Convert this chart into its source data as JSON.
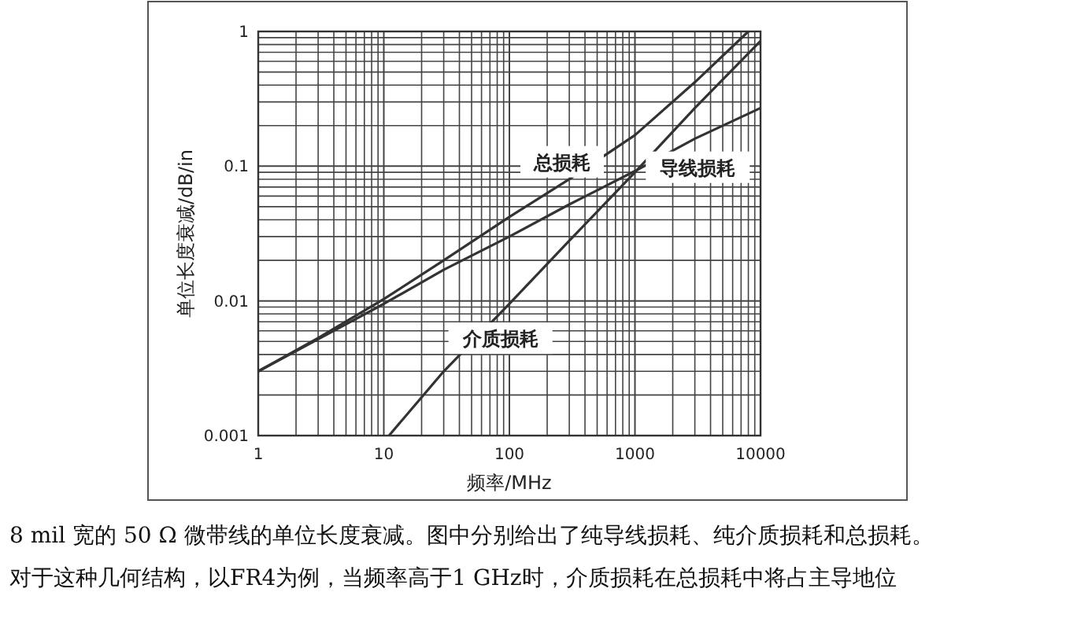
{
  "chart_data": {
    "type": "line",
    "xlabel": "频率/MHz",
    "ylabel": "单位长度衰减/dB/in",
    "log": "xy",
    "grid": true,
    "xlim": [
      1,
      10000
    ],
    "ylim": [
      0.001,
      1
    ],
    "xticks": [
      1,
      10,
      100,
      1000,
      10000
    ],
    "yticks": [
      0.001,
      0.01,
      0.1,
      1
    ],
    "series": [
      {
        "name": "总损耗",
        "color": "#333333",
        "x": [
          1,
          3,
          10,
          30,
          100,
          300,
          1000,
          3000,
          8000
        ],
        "values": [
          0.003,
          0.0053,
          0.0103,
          0.02,
          0.042,
          0.08,
          0.17,
          0.42,
          1
        ]
      },
      {
        "name": "导线损耗",
        "color": "#333333",
        "x": [
          1,
          3,
          10,
          30,
          100,
          300,
          1000,
          3000,
          10000
        ],
        "values": [
          0.003,
          0.0052,
          0.0095,
          0.017,
          0.03,
          0.052,
          0.092,
          0.16,
          0.27
        ]
      },
      {
        "name": "介质损耗",
        "color": "#333333",
        "x": [
          11,
          30,
          100,
          300,
          1000,
          3000,
          10000
        ],
        "values": [
          0.001,
          0.003,
          0.0095,
          0.028,
          0.09,
          0.27,
          0.85
        ]
      }
    ],
    "annotations": [
      "8 mil 宽的 50 Ω 微带线的单位长度衰减。图中分别给出了纯导线损耗、纯介质损耗和总损耗。",
      "对于这种几何结构，以FR4为例，当频率高于1 GHz时，介质损耗在总损耗中将占主导地位"
    ]
  }
}
